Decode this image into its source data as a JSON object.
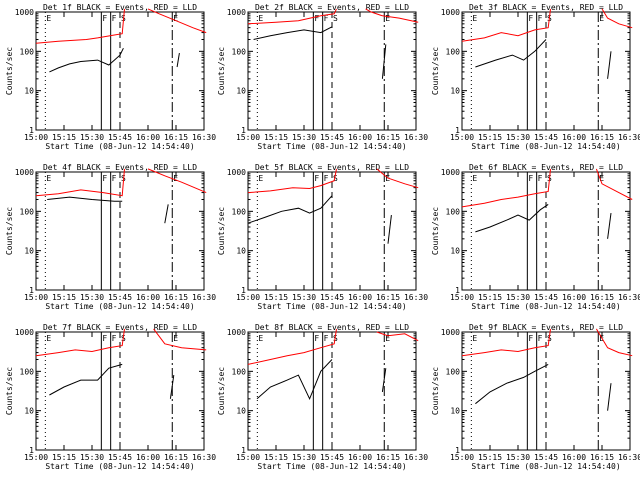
{
  "chart_data": {
    "type": "line",
    "layout": "3x3 grid of panels",
    "y_scale": "log",
    "ylim": [
      1,
      1000
    ],
    "ylabel": "Counts/sec",
    "xlabel": "Start Time (08-Jun-12 14:54:40)",
    "x_tick_labels": [
      "15:00",
      "15:15",
      "15:30",
      "15:45",
      "16:00",
      "16:15",
      "16:30"
    ],
    "y_tick_labels": [
      "1",
      "10",
      "100",
      "1000"
    ],
    "colors": {
      "events": "#000000",
      "lld": "#ff0000"
    },
    "markers": [
      {
        "label": "E",
        "time": "15:05",
        "style": "dotted"
      },
      {
        "label": "F",
        "time": "15:35",
        "style": "solid"
      },
      {
        "label": "F",
        "time": "15:40",
        "style": "solid"
      },
      {
        "label": "S",
        "time": "15:45",
        "style": "dashed"
      },
      {
        "label": "E",
        "time": "16:13",
        "style": "dashdot"
      }
    ],
    "panels": [
      {
        "title": "Det 1f BLACK = Events, RED = LLD",
        "lld": [
          [
            15.0,
            160
          ],
          [
            15.2,
            180
          ],
          [
            15.45,
            200
          ],
          [
            15.55,
            220
          ],
          [
            15.7,
            260
          ],
          [
            15.77,
            280
          ],
          [
            15.79,
            1500
          ]
        ],
        "lld2": [
          [
            16.0,
            1500
          ],
          [
            16.1,
            900
          ],
          [
            16.25,
            600
          ],
          [
            16.4,
            400
          ],
          [
            16.52,
            300
          ]
        ],
        "events": [
          [
            15.12,
            30
          ],
          [
            15.2,
            38
          ],
          [
            15.3,
            48
          ],
          [
            15.4,
            55
          ],
          [
            15.55,
            60
          ],
          [
            15.65,
            45
          ],
          [
            15.7,
            60
          ],
          [
            15.75,
            80
          ],
          [
            15.78,
            120
          ]
        ],
        "events2": [
          [
            16.26,
            40
          ],
          [
            16.28,
            90
          ]
        ]
      },
      {
        "title": "Det 2f BLACK = Events, RED = LLD",
        "lld": [
          [
            15.0,
            500
          ],
          [
            15.25,
            550
          ],
          [
            15.45,
            600
          ],
          [
            15.65,
            800
          ],
          [
            15.77,
            900
          ],
          [
            15.79,
            2500
          ]
        ],
        "lld2": [
          [
            16.05,
            2000
          ],
          [
            16.1,
            1000
          ],
          [
            16.2,
            800
          ],
          [
            16.35,
            700
          ],
          [
            16.52,
            550
          ]
        ],
        "events": [
          [
            15.05,
            200
          ],
          [
            15.2,
            250
          ],
          [
            15.35,
            300
          ],
          [
            15.5,
            350
          ],
          [
            15.65,
            300
          ],
          [
            15.75,
            420
          ]
        ],
        "events2": [
          [
            16.2,
            20
          ],
          [
            16.23,
            150
          ]
        ]
      },
      {
        "title": "Det 3f BLACK = Events, RED = LLD",
        "lld": [
          [
            15.0,
            180
          ],
          [
            15.2,
            220
          ],
          [
            15.35,
            300
          ],
          [
            15.5,
            250
          ],
          [
            15.65,
            350
          ],
          [
            15.77,
            400
          ],
          [
            15.79,
            2000
          ]
        ],
        "lld2": [
          [
            16.25,
            1500
          ],
          [
            16.3,
            700
          ],
          [
            16.4,
            500
          ],
          [
            16.52,
            400
          ]
        ],
        "events": [
          [
            15.12,
            40
          ],
          [
            15.3,
            60
          ],
          [
            15.45,
            80
          ],
          [
            15.55,
            60
          ],
          [
            15.65,
            100
          ],
          [
            15.75,
            200
          ]
        ],
        "events2": [
          [
            16.3,
            20
          ],
          [
            16.33,
            100
          ]
        ]
      },
      {
        "title": "Det 4f BLACK = Events, RED = LLD",
        "lld": [
          [
            15.0,
            250
          ],
          [
            15.2,
            280
          ],
          [
            15.4,
            350
          ],
          [
            15.6,
            300
          ],
          [
            15.77,
            250
          ],
          [
            15.79,
            1500
          ]
        ],
        "lld2": [
          [
            16.0,
            1500
          ],
          [
            16.15,
            800
          ],
          [
            16.3,
            550
          ],
          [
            16.52,
            300
          ]
        ],
        "events": [
          [
            15.1,
            200
          ],
          [
            15.3,
            230
          ],
          [
            15.5,
            200
          ],
          [
            15.7,
            180
          ],
          [
            15.77,
            180
          ]
        ],
        "events2": [
          [
            16.15,
            50
          ],
          [
            16.18,
            150
          ]
        ]
      },
      {
        "title": "Det 5f BLACK = Events, RED = LLD",
        "lld": [
          [
            15.0,
            300
          ],
          [
            15.2,
            330
          ],
          [
            15.4,
            400
          ],
          [
            15.55,
            380
          ],
          [
            15.65,
            450
          ],
          [
            15.77,
            600
          ],
          [
            15.79,
            2000
          ]
        ],
        "lld2": [
          [
            16.15,
            1500
          ],
          [
            16.25,
            700
          ],
          [
            16.4,
            500
          ],
          [
            16.52,
            400
          ]
        ],
        "events": [
          [
            15.0,
            50
          ],
          [
            15.15,
            70
          ],
          [
            15.3,
            100
          ],
          [
            15.45,
            120
          ],
          [
            15.55,
            90
          ],
          [
            15.65,
            120
          ],
          [
            15.75,
            250
          ]
        ],
        "events2": [
          [
            16.25,
            15
          ],
          [
            16.28,
            80
          ]
        ]
      },
      {
        "title": "Det 6f BLACK = Events, RED = LLD",
        "lld": [
          [
            15.0,
            130
          ],
          [
            15.2,
            160
          ],
          [
            15.35,
            200
          ],
          [
            15.5,
            230
          ],
          [
            15.65,
            280
          ],
          [
            15.77,
            320
          ],
          [
            15.79,
            2000
          ]
        ],
        "lld2": [
          [
            16.2,
            1500
          ],
          [
            16.25,
            500
          ],
          [
            16.4,
            300
          ],
          [
            16.52,
            200
          ]
        ],
        "events": [
          [
            15.12,
            30
          ],
          [
            15.25,
            40
          ],
          [
            15.4,
            60
          ],
          [
            15.5,
            80
          ],
          [
            15.6,
            60
          ],
          [
            15.7,
            110
          ],
          [
            15.77,
            150
          ]
        ],
        "events2": [
          [
            16.3,
            20
          ],
          [
            16.33,
            90
          ]
        ]
      },
      {
        "title": "Det 7f BLACK = Events, RED = LLD",
        "lld": [
          [
            15.0,
            250
          ],
          [
            15.2,
            300
          ],
          [
            15.35,
            350
          ],
          [
            15.5,
            320
          ],
          [
            15.65,
            400
          ],
          [
            15.77,
            450
          ],
          [
            15.79,
            2000
          ]
        ],
        "lld2": [
          [
            16.05,
            1500
          ],
          [
            16.15,
            500
          ],
          [
            16.3,
            400
          ],
          [
            16.52,
            350
          ]
        ],
        "events": [
          [
            15.12,
            25
          ],
          [
            15.25,
            40
          ],
          [
            15.4,
            60
          ],
          [
            15.55,
            60
          ],
          [
            15.65,
            120
          ],
          [
            15.77,
            150
          ]
        ],
        "events2": [
          [
            16.2,
            20
          ],
          [
            16.23,
            80
          ]
        ]
      },
      {
        "title": "Det 8f BLACK = Events, RED = LLD",
        "lld": [
          [
            15.0,
            150
          ],
          [
            15.2,
            200
          ],
          [
            15.35,
            250
          ],
          [
            15.5,
            300
          ],
          [
            15.65,
            400
          ],
          [
            15.77,
            500
          ],
          [
            15.79,
            1500
          ]
        ],
        "lld2": [
          [
            16.15,
            1000
          ],
          [
            16.25,
            800
          ],
          [
            16.4,
            900
          ],
          [
            16.52,
            600
          ]
        ],
        "events": [
          [
            15.08,
            20
          ],
          [
            15.2,
            40
          ],
          [
            15.35,
            60
          ],
          [
            15.45,
            80
          ],
          [
            15.55,
            20
          ],
          [
            15.65,
            100
          ],
          [
            15.75,
            200
          ]
        ],
        "events2": [
          [
            16.2,
            30
          ],
          [
            16.23,
            120
          ]
        ]
      },
      {
        "title": "Det 9f BLACK = Events, RED = LLD",
        "lld": [
          [
            15.0,
            250
          ],
          [
            15.2,
            300
          ],
          [
            15.35,
            350
          ],
          [
            15.5,
            320
          ],
          [
            15.65,
            400
          ],
          [
            15.77,
            450
          ],
          [
            15.79,
            2000
          ]
        ],
        "lld2": [
          [
            16.2,
            1500
          ],
          [
            16.3,
            400
          ],
          [
            16.4,
            300
          ],
          [
            16.52,
            250
          ]
        ],
        "events": [
          [
            15.12,
            15
          ],
          [
            15.25,
            30
          ],
          [
            15.4,
            50
          ],
          [
            15.55,
            70
          ],
          [
            15.65,
            100
          ],
          [
            15.77,
            150
          ]
        ],
        "events2": [
          [
            16.3,
            10
          ],
          [
            16.33,
            50
          ]
        ]
      }
    ]
  }
}
